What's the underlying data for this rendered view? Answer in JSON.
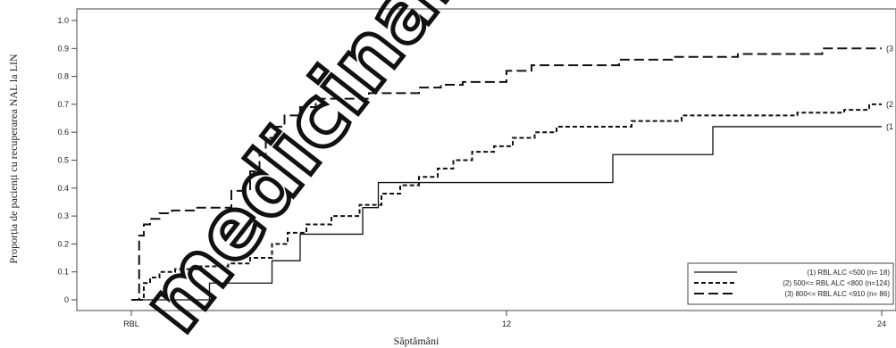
{
  "chart_data": {
    "type": "line",
    "step": true,
    "title": "",
    "xlabel": "Săptămâni",
    "ylabel": "Proporția de pacienți cu recuperarea NAL la LIN",
    "xlim": [
      0,
      24
    ],
    "ylim": [
      0,
      1.0
    ],
    "xticks": [
      {
        "value": 0,
        "label": "RBL"
      },
      {
        "value": 12,
        "label": "12"
      },
      {
        "value": 24,
        "label": "24"
      }
    ],
    "yticks": [
      "0",
      "0.1",
      "0.2",
      "0.3",
      "0.4",
      "0.5",
      "0.6",
      "0.7",
      "0.8",
      "0.9",
      "1.0"
    ],
    "legend_position": "bottom-right",
    "series": [
      {
        "name": "(1) RBL ALC <500 (n= 18)",
        "end_label": "(1",
        "style": "solid",
        "x": [
          0,
          0.2,
          2.5,
          4.5,
          5.4,
          7.4,
          7.9,
          15.4,
          18.6,
          24
        ],
        "y": [
          0,
          0,
          0.06,
          0.14,
          0.235,
          0.33,
          0.42,
          0.52,
          0.62,
          0.62
        ]
      },
      {
        "name": "(2) 500<= RBL ALC <800 (n=124)",
        "end_label": "(2",
        "style": "short-dash",
        "x": [
          0,
          0.4,
          0.6,
          0.9,
          1.4,
          2.2,
          3.1,
          3.8,
          4.5,
          5.0,
          5.6,
          6.4,
          7.3,
          8.0,
          8.6,
          9.2,
          9.8,
          10.3,
          10.9,
          11.6,
          12.2,
          12.9,
          13.6,
          14.3,
          16.0,
          17.6,
          19.5,
          21.3,
          22.8,
          23.6,
          24
        ],
        "y": [
          0,
          0.06,
          0.08,
          0.1,
          0.11,
          0.12,
          0.13,
          0.15,
          0.2,
          0.24,
          0.27,
          0.3,
          0.34,
          0.38,
          0.41,
          0.44,
          0.47,
          0.5,
          0.53,
          0.55,
          0.58,
          0.6,
          0.62,
          0.62,
          0.64,
          0.66,
          0.66,
          0.67,
          0.68,
          0.7,
          0.7
        ]
      },
      {
        "name": "(3) 800<= RBL ALC <910 (n= 86)",
        "end_label": "(3",
        "style": "long-dash",
        "x": [
          0,
          0.25,
          0.4,
          0.6,
          0.9,
          1.3,
          2.0,
          3.2,
          3.8,
          4.1,
          4.3,
          4.6,
          4.9,
          5.4,
          5.9,
          7.6,
          9.2,
          9.9,
          10.6,
          12.0,
          12.8,
          13.5,
          15.6,
          17.3,
          19.4,
          22.1,
          24
        ],
        "y": [
          0,
          0.23,
          0.27,
          0.29,
          0.31,
          0.32,
          0.33,
          0.39,
          0.46,
          0.52,
          0.58,
          0.62,
          0.66,
          0.69,
          0.72,
          0.74,
          0.76,
          0.77,
          0.78,
          0.82,
          0.84,
          0.84,
          0.86,
          0.87,
          0.88,
          0.9,
          0.9
        ]
      }
    ]
  },
  "watermark": "medicinal nu mai"
}
